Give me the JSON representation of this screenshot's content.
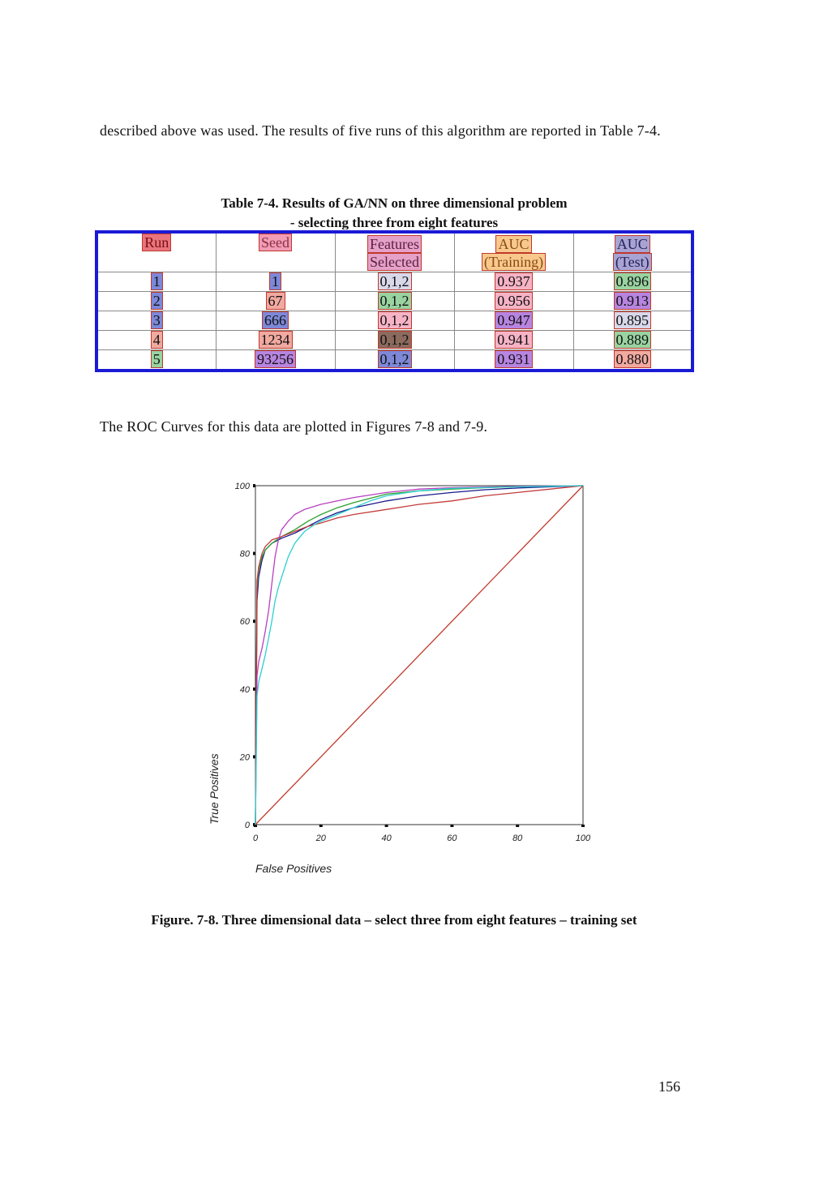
{
  "intro_text": "described above was used. The results of five runs of this algorithm are reported in Table 7-4.",
  "table": {
    "title_line1": "Table 7-4. Results of GA/NN on three dimensional problem",
    "title_line2": "- selecting three from eight features",
    "headers": {
      "run": "Run",
      "seed": "Seed",
      "features_l1": "Features",
      "features_l2": "Selected",
      "auc_train_l1": "AUC",
      "auc_train_l2": "(Training)",
      "auc_test_l1": "AUC",
      "auc_test_l2": "(Test)"
    },
    "rows": [
      {
        "run": "1",
        "seed": "1",
        "features": "0,1,2",
        "auc_train": "0.937",
        "auc_test": "0.896"
      },
      {
        "run": "2",
        "seed": "67",
        "features": "0,1,2",
        "auc_train": "0.956",
        "auc_test": "0.913"
      },
      {
        "run": "3",
        "seed": "666",
        "features": "0,1,2",
        "auc_train": "0.947",
        "auc_test": "0.895"
      },
      {
        "run": "4",
        "seed": "1234",
        "features": "0,1,2",
        "auc_train": "0.941",
        "auc_test": "0.889"
      },
      {
        "run": "5",
        "seed": "93256",
        "features": "0,1,2",
        "auc_train": "0.931",
        "auc_test": "0.880"
      }
    ]
  },
  "roc_text": "The ROC Curves for this data are plotted in Figures 7-8 and 7-9.",
  "chart_data": {
    "type": "line",
    "title": "",
    "xlabel": "False Positives",
    "ylabel": "True Positives",
    "xlim": [
      0,
      100
    ],
    "ylim": [
      0,
      100
    ],
    "xticks": [
      "0",
      "20",
      "40",
      "60",
      "80",
      "100"
    ],
    "yticks": [
      "0",
      "20",
      "40",
      "60",
      "80",
      "100"
    ],
    "grid": false,
    "legend": "none",
    "series": [
      {
        "color": "#c0392b",
        "x": [
          0,
          100
        ],
        "y": [
          0,
          100
        ]
      },
      {
        "color": "#1a1a8c",
        "x": [
          0,
          0.5,
          1,
          2,
          3,
          5,
          8,
          12,
          16,
          20,
          25,
          30,
          40,
          50,
          60,
          70,
          80,
          90,
          100
        ],
        "y": [
          0,
          66,
          73,
          78,
          81,
          83,
          84.5,
          86,
          88,
          90,
          92,
          93.5,
          95.5,
          97,
          98,
          98.8,
          99.3,
          99.7,
          100
        ]
      },
      {
        "color": "#2ca02c",
        "x": [
          0,
          0.5,
          1,
          2,
          3,
          5,
          8,
          12,
          16,
          20,
          25,
          30,
          40,
          50,
          60,
          70,
          80,
          90,
          100
        ],
        "y": [
          0,
          70,
          75,
          79,
          81,
          83,
          85,
          87,
          89.5,
          91.5,
          93.5,
          95,
          97.5,
          98.5,
          99,
          99.4,
          99.7,
          99.9,
          100
        ]
      },
      {
        "color": "#c43a3a",
        "x": [
          0,
          0.5,
          1,
          2,
          3,
          5,
          8,
          12,
          16,
          20,
          25,
          30,
          40,
          50,
          60,
          70,
          80,
          90,
          100
        ],
        "y": [
          0,
          72,
          76,
          80,
          82,
          84,
          85,
          86.5,
          88,
          89,
          90.5,
          91.5,
          93,
          94.5,
          95.5,
          97,
          98,
          99,
          100
        ]
      },
      {
        "color": "#b83fbf",
        "x": [
          0,
          0.5,
          1,
          2,
          3,
          4,
          5,
          6,
          7,
          8,
          10,
          12,
          15,
          20,
          25,
          30,
          40,
          50,
          60,
          80,
          100
        ],
        "y": [
          0,
          44,
          48,
          52,
          57,
          63,
          71,
          79,
          84,
          87,
          89.5,
          91.5,
          93,
          94.5,
          95.5,
          96.5,
          98,
          99,
          99.4,
          99.8,
          100
        ]
      },
      {
        "color": "#2ccfcf",
        "x": [
          0,
          0.5,
          1,
          2,
          3,
          4,
          5,
          6,
          7,
          8,
          10,
          12,
          15,
          18,
          20,
          25,
          30,
          35,
          40,
          50,
          60,
          80,
          100
        ],
        "y": [
          0,
          38,
          42,
          46,
          50,
          55,
          60,
          66,
          70,
          73,
          79,
          83,
          86.5,
          88.5,
          89.5,
          91.5,
          93.5,
          95.5,
          97,
          98.5,
          99.2,
          99.7,
          100
        ]
      }
    ]
  },
  "figure_caption": "Figure. 7-8. Three dimensional data – select three from eight features – training set",
  "page_number": "156"
}
